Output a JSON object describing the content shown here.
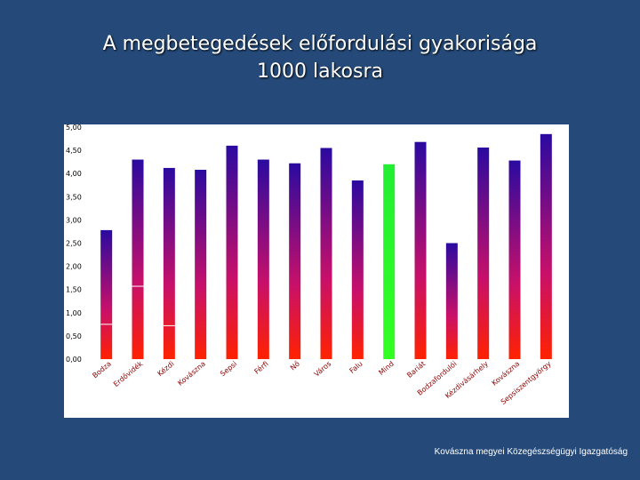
{
  "title": {
    "line1": "A megbetegedések előfordulási gyakorisága",
    "line2": "1000 lakosra"
  },
  "footer": "Kovászna megyei Közegészségügyi Igazgatóság",
  "chart_data": {
    "type": "bar",
    "categories": [
      "Bodza",
      "Erdővidék",
      "Kézdi",
      "Kovászna",
      "Sepsi",
      "Férfi",
      "Nő",
      "Város",
      "Falu",
      "Mind",
      "Bariát",
      "Bodzafordulói",
      "Kézdivásárhely",
      "Kovászna",
      "Sepsiszentgyörgy"
    ],
    "values": [
      2.78,
      4.3,
      4.12,
      4.08,
      4.6,
      4.3,
      4.22,
      4.55,
      3.85,
      4.2,
      4.68,
      2.5,
      4.56,
      4.28,
      4.85
    ],
    "highlight_index": 9,
    "marker_lines": [
      {
        "category_index": 0,
        "value": 0.75
      },
      {
        "category_index": 1,
        "value": 1.57
      },
      {
        "category_index": 2,
        "value": 0.72
      }
    ],
    "ylim": [
      0,
      5
    ],
    "yticks": [
      "0,00",
      "0,50",
      "1,00",
      "1,50",
      "2,00",
      "2,50",
      "3,00",
      "3,50",
      "4,00",
      "4,50",
      "5,00"
    ],
    "grid": false,
    "colors": {
      "gradient_top": "#2a0aa0",
      "gradient_mid": "#c8106a",
      "gradient_bottom": "#ff2200",
      "highlight_top": "#22ee33",
      "highlight_bottom": "#33ff22",
      "marker": "#ffffff",
      "tick_text": "#000000",
      "label_text": "#8b0000"
    }
  }
}
